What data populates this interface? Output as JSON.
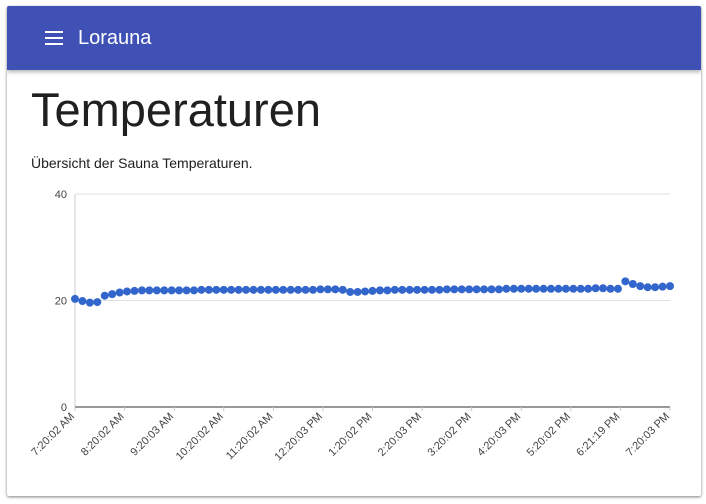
{
  "app": {
    "title": "Lorauna",
    "menu_icon": "menu-icon",
    "brand_color": "#3f51b5"
  },
  "page": {
    "title": "Temperaturen",
    "description": "Übersicht der Sauna Temperaturen."
  },
  "chart_data": {
    "type": "scatter",
    "title": "",
    "xlabel": "",
    "ylabel": "",
    "ylim": [
      0,
      40
    ],
    "yticks": [
      0,
      20,
      40
    ],
    "grid": true,
    "point_color": "#3366cc",
    "x_tick_labels": [
      "7:20:02 AM",
      "8:20:02 AM",
      "9:20:03 AM",
      "10:20:02 AM",
      "11:20:02 AM",
      "12:20:03 PM",
      "1:20:02 PM",
      "2:20:03 PM",
      "3:20:02 PM",
      "4:20:03 PM",
      "5:20:02 PM",
      "6:21:19 PM",
      "7:20:03 PM"
    ],
    "values": [
      20.3,
      19.9,
      19.6,
      19.7,
      20.9,
      21.2,
      21.5,
      21.7,
      21.8,
      21.9,
      21.9,
      21.9,
      21.9,
      21.9,
      21.9,
      21.9,
      21.9,
      22.0,
      22.0,
      22.0,
      22.0,
      22.0,
      22.0,
      22.0,
      22.0,
      22.0,
      22.0,
      22.0,
      22.0,
      22.0,
      22.0,
      22.0,
      22.0,
      22.1,
      22.1,
      22.1,
      22.0,
      21.6,
      21.6,
      21.7,
      21.8,
      21.9,
      21.9,
      22.0,
      22.0,
      22.0,
      22.0,
      22.0,
      22.0,
      22.0,
      22.1,
      22.1,
      22.1,
      22.1,
      22.1,
      22.1,
      22.1,
      22.1,
      22.2,
      22.2,
      22.2,
      22.2,
      22.2,
      22.2,
      22.2,
      22.2,
      22.2,
      22.2,
      22.2,
      22.2,
      22.3,
      22.3,
      22.2,
      22.2,
      23.6,
      23.1,
      22.7,
      22.5,
      22.5,
      22.6,
      22.7
    ]
  }
}
